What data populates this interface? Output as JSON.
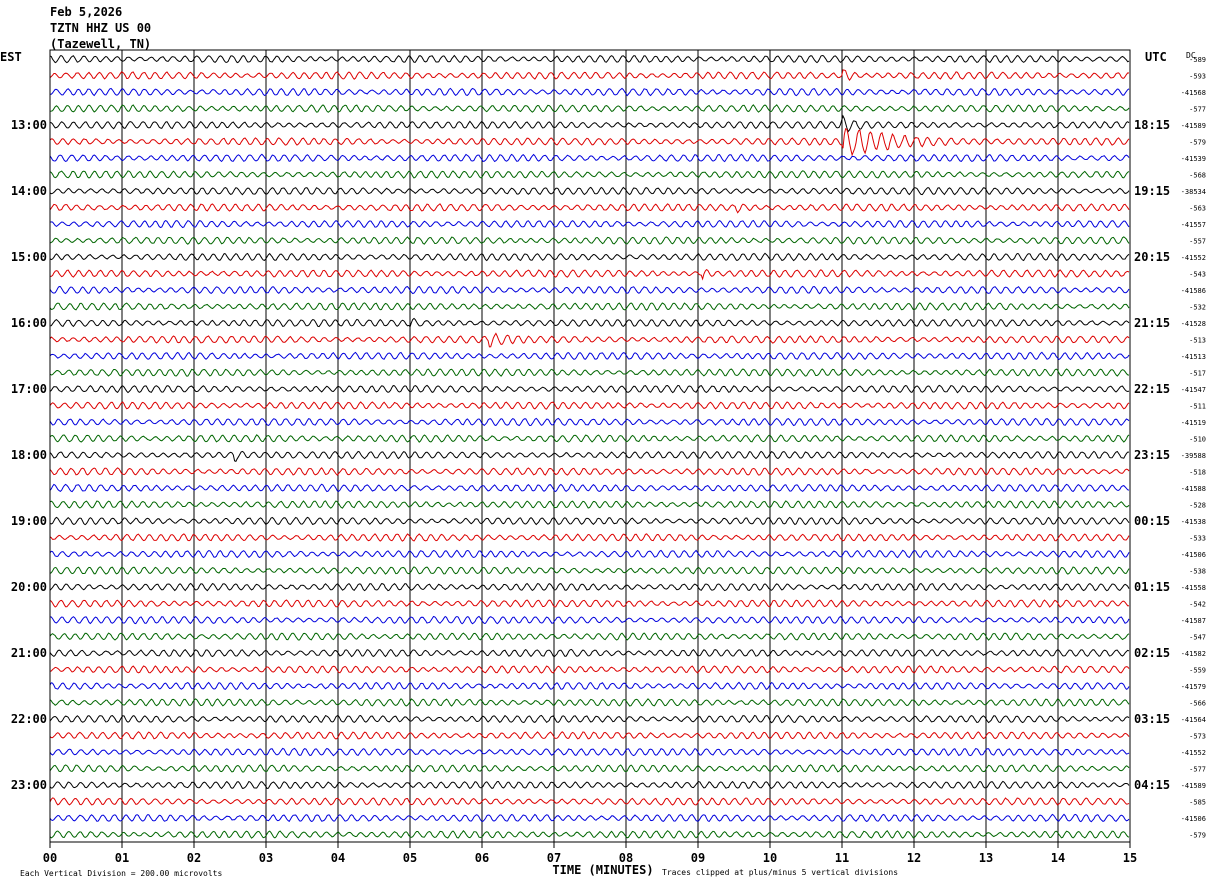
{
  "header": {
    "date": "Feb 5,2026",
    "station": "TZTN HHZ US 00",
    "location": "(Tazewell, TN)"
  },
  "labels": {
    "left_tz": "EST",
    "right_tz": "UTC",
    "dc": "DC",
    "xaxis_title": "TIME (MINUTES)",
    "scale_note": "Each Vertical Division =  200.00 microvolts",
    "clip_note": "Traces clipped at plus/minus 5 vertical divisions"
  },
  "chart_data": {
    "type": "line",
    "title": "TZTN HHZ US 00",
    "xlabel": "TIME (MINUTES)",
    "xlim": [
      0,
      15
    ],
    "x_ticks": [
      "00",
      "01",
      "02",
      "03",
      "04",
      "05",
      "06",
      "07",
      "08",
      "09",
      "10",
      "11",
      "12",
      "13",
      "14",
      "15"
    ],
    "trace_count": 48,
    "trace_colors": [
      "#000000",
      "#dd0000",
      "#0000dd",
      "#006600"
    ],
    "est_hour_labels": [
      {
        "row": 4,
        "label": "13:00"
      },
      {
        "row": 8,
        "label": "14:00"
      },
      {
        "row": 12,
        "label": "15:00"
      },
      {
        "row": 16,
        "label": "16:00"
      },
      {
        "row": 20,
        "label": "17:00"
      },
      {
        "row": 24,
        "label": "18:00"
      },
      {
        "row": 28,
        "label": "19:00"
      },
      {
        "row": 32,
        "label": "20:00"
      },
      {
        "row": 36,
        "label": "21:00"
      },
      {
        "row": 40,
        "label": "22:00"
      },
      {
        "row": 44,
        "label": "23:00"
      }
    ],
    "utc_hour_labels": [
      {
        "row": 4,
        "label": "18:15"
      },
      {
        "row": 8,
        "label": "19:15"
      },
      {
        "row": 12,
        "label": "20:15"
      },
      {
        "row": 16,
        "label": "21:15"
      },
      {
        "row": 20,
        "label": "22:15"
      },
      {
        "row": 24,
        "label": "23:15"
      },
      {
        "row": 28,
        "label": "00:15"
      },
      {
        "row": 32,
        "label": "01:15"
      },
      {
        "row": 36,
        "label": "02:15"
      },
      {
        "row": 40,
        "label": "03:15"
      },
      {
        "row": 44,
        "label": "04:15"
      }
    ],
    "dc_offsets": [
      "-589",
      "-593",
      "-41568",
      "-577",
      "-41589",
      "-579",
      "-41539",
      "-568",
      "-38534",
      "-563",
      "-41557",
      "-557",
      "-41552",
      "-543",
      "-41586",
      "-532",
      "-41528",
      "-513",
      "-41513",
      "-517",
      "-41547",
      "-511",
      "-41519",
      "-510",
      "-39588",
      "-518",
      "-41588",
      "-528",
      "-41538",
      "-533",
      "-41506",
      "-538",
      "-41558",
      "-542",
      "-41587",
      "-547",
      "-41582",
      "-559",
      "-41579",
      "-566",
      "-41564",
      "-573",
      "-41552",
      "-577",
      "-41589",
      "-585",
      "-41506",
      "-579"
    ],
    "events": [
      {
        "row": 5,
        "minute": 11.0,
        "duration_min": 2.0,
        "amplitude": 3.5
      },
      {
        "row": 4,
        "minute": 10.98,
        "duration_min": 0.4,
        "amplitude": 2.0
      },
      {
        "row": 1,
        "minute": 11.0,
        "duration_min": 0.3,
        "amplitude": 1.5
      },
      {
        "row": 17,
        "minute": 6.1,
        "duration_min": 0.5,
        "amplitude": 1.6
      },
      {
        "row": 13,
        "minute": 9.05,
        "duration_min": 0.2,
        "amplitude": 1.6
      },
      {
        "row": 24,
        "minute": 2.55,
        "duration_min": 0.2,
        "amplitude": 1.5
      },
      {
        "row": 9,
        "minute": 9.5,
        "duration_min": 0.3,
        "amplitude": 1.3
      },
      {
        "row": 16,
        "minute": 5.0,
        "duration_min": 0.2,
        "amplitude": 1.3
      }
    ]
  }
}
